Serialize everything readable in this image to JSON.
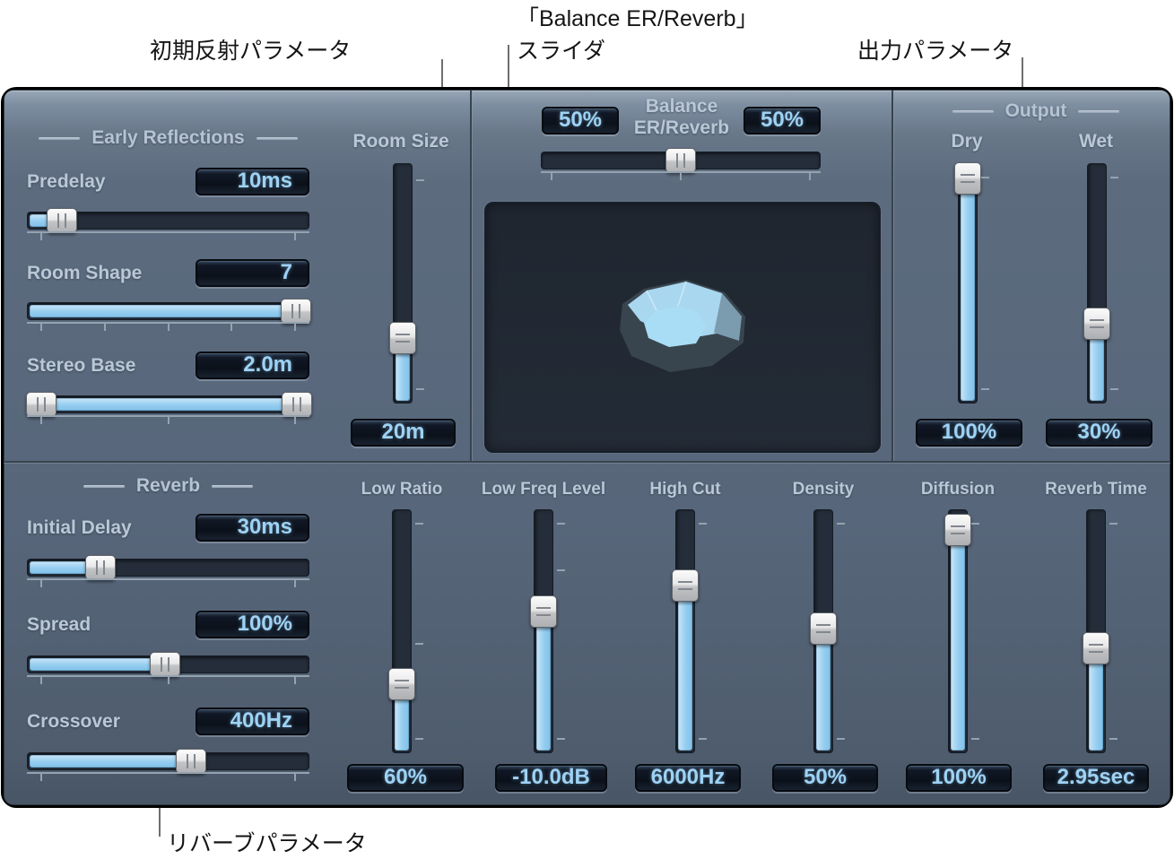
{
  "annotations": {
    "early": "初期反射パラメータ",
    "balance_line1": "「Balance ER/Reverb」",
    "balance_line2": "スライダ",
    "output": "出力パラメータ",
    "reverb": "リバーブパラメータ"
  },
  "colors": {
    "panel": "#57667A",
    "accent_blue": "#94CDF0",
    "value_text": "#9ED2F4",
    "label_text": "#BAC7D6",
    "track_dark": "#242D39"
  },
  "sections": {
    "early_reflections": {
      "title": "Early Reflections",
      "params": [
        {
          "label": "Predelay",
          "value": "10ms"
        },
        {
          "label": "Room Shape",
          "value": "7"
        },
        {
          "label": "Stereo Base",
          "value": "2.0m"
        }
      ]
    },
    "room_size": {
      "label": "Room Size",
      "value": "20m"
    },
    "balance": {
      "label_line1": "Balance",
      "label_line2": "ER/Reverb",
      "left_value": "50%",
      "right_value": "50%"
    },
    "output": {
      "title": "Output",
      "dry_label": "Dry",
      "wet_label": "Wet",
      "dry_value": "100%",
      "wet_value": "30%"
    },
    "reverb": {
      "title": "Reverb",
      "params": [
        {
          "label": "Initial Delay",
          "value": "30ms"
        },
        {
          "label": "Spread",
          "value": "100%"
        },
        {
          "label": "Crossover",
          "value": "400Hz"
        }
      ]
    },
    "columns": [
      {
        "label": "Low Ratio",
        "value": "60%"
      },
      {
        "label": "Low Freq Level",
        "value": "-10.0dB"
      },
      {
        "label": "High Cut",
        "value": "6000Hz"
      },
      {
        "label": "Density",
        "value": "50%"
      },
      {
        "label": "Diffusion",
        "value": "100%"
      },
      {
        "label": "Reverb Time",
        "value": "2.95sec"
      }
    ]
  },
  "sliders": {
    "predelay": {
      "type": "h",
      "handle": 12,
      "ticks": [
        5,
        95
      ]
    },
    "room_shape": {
      "type": "h",
      "handle": 95.5,
      "ticks": [
        5,
        27.5,
        50,
        72.5,
        95
      ]
    },
    "stereo_base": {
      "type": "range",
      "handles": [
        4.8,
        96
      ],
      "ticks": [
        5,
        50,
        95
      ]
    },
    "balance": {
      "type": "h",
      "handle": 50,
      "fill": false,
      "ticks": [
        4,
        50,
        96
      ]
    },
    "room_size": {
      "type": "v",
      "handle": 73,
      "ticks": [
        7,
        94
      ]
    },
    "dry": {
      "type": "v",
      "handle": 6,
      "ticks": [
        6,
        94
      ]
    },
    "wet": {
      "type": "v",
      "handle": 67,
      "ticks": [
        6,
        94
      ]
    },
    "initial_delay": {
      "type": "h",
      "handle": 26,
      "ticks": [
        5,
        95
      ]
    },
    "spread": {
      "type": "h",
      "handle": 49,
      "ticks": [
        5,
        50,
        95
      ]
    },
    "crossover": {
      "type": "h",
      "handle": 58,
      "ticks": [
        5,
        95
      ]
    },
    "low_ratio": {
      "type": "v",
      "handle": 72,
      "ticks": [
        6,
        55,
        94
      ]
    },
    "low_freq_level": {
      "type": "v",
      "handle": 42,
      "ticks": [
        6,
        25,
        94
      ]
    },
    "high_cut": {
      "type": "v",
      "handle": 31,
      "ticks": [
        6,
        94
      ]
    },
    "density": {
      "type": "v",
      "handle": 49,
      "ticks": [
        6,
        94
      ]
    },
    "diffusion": {
      "type": "v",
      "handle": 8,
      "ticks": [
        6,
        94
      ]
    },
    "reverb_time": {
      "type": "v",
      "handle": 57,
      "ticks": [
        6,
        94
      ]
    }
  }
}
